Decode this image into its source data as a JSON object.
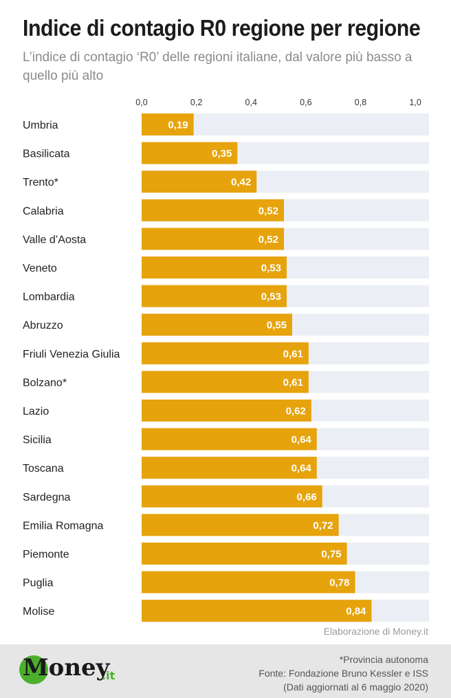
{
  "header": {
    "title": "Indice di contagio R0 regione per regione",
    "subtitle": "L’indice di contagio ‘R0’ delle regioni italiane, dal valore più basso a quello più alto"
  },
  "colors": {
    "bar": "#e6a30c",
    "track": "#ebeff5",
    "label": "#222222",
    "value_label": "#ffffff"
  },
  "chart_data": {
    "type": "bar",
    "orientation": "horizontal",
    "categories": [
      "Umbria",
      "Basilicata",
      "Trento*",
      "Calabria",
      "Valle d’Aosta",
      "Veneto",
      "Lombardia",
      "Abruzzo",
      "Friuli Venezia Giulia",
      "Bolzano*",
      "Lazio",
      "Sicilia",
      "Toscana",
      "Sardegna",
      "Emilia Romagna",
      "Piemonte",
      "Puglia",
      "Molise"
    ],
    "values": [
      0.19,
      0.35,
      0.42,
      0.52,
      0.52,
      0.53,
      0.53,
      0.55,
      0.61,
      0.61,
      0.62,
      0.64,
      0.64,
      0.66,
      0.72,
      0.75,
      0.78,
      0.84
    ],
    "value_labels": [
      "0,19",
      "0,35",
      "0,42",
      "0,52",
      "0,52",
      "0,53",
      "0,53",
      "0,55",
      "0,61",
      "0,61",
      "0,62",
      "0,64",
      "0,64",
      "0,66",
      "0,72",
      "0,75",
      "0,78",
      "0,84"
    ],
    "ticks": [
      0,
      0.2,
      0.4,
      0.6,
      0.8,
      1.0
    ],
    "tick_labels": [
      "0,0",
      "0,2",
      "0,4",
      "0,6",
      "0,8",
      "1,0"
    ],
    "xlim": [
      0,
      1.05
    ],
    "axis_position": "top",
    "grid": false,
    "legend": "none"
  },
  "credit": "Elaborazione di Money.it",
  "footer": {
    "note": "*Provincia autonoma",
    "source": "Fonte: Fondazione Bruno Kessler e ISS",
    "updated": "(Dati aggiornati al 6 maggio 2020)"
  },
  "logo": {
    "name": "Money",
    "suffix": ".it"
  }
}
